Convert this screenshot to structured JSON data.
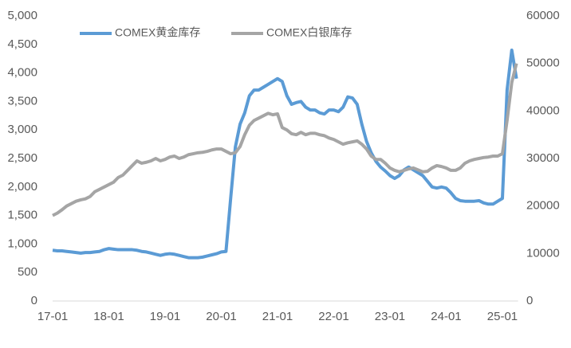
{
  "chart_data": {
    "type": "line",
    "x": [
      "17-01",
      "17-02",
      "17-03",
      "17-04",
      "17-05",
      "17-06",
      "17-07",
      "17-08",
      "17-09",
      "17-10",
      "17-11",
      "17-12",
      "18-01",
      "18-02",
      "18-03",
      "18-04",
      "18-05",
      "18-06",
      "18-07",
      "18-08",
      "18-09",
      "18-10",
      "18-11",
      "18-12",
      "19-01",
      "19-02",
      "19-03",
      "19-04",
      "19-05",
      "19-06",
      "19-07",
      "19-08",
      "19-09",
      "19-10",
      "19-11",
      "19-12",
      "20-01",
      "20-02",
      "20-03",
      "20-04",
      "20-05",
      "20-06",
      "20-07",
      "20-08",
      "20-09",
      "20-10",
      "20-11",
      "20-12",
      "21-01",
      "21-02",
      "21-03",
      "21-04",
      "21-05",
      "21-06",
      "21-07",
      "21-08",
      "21-09",
      "21-10",
      "21-11",
      "21-12",
      "22-01",
      "22-02",
      "22-03",
      "22-04",
      "22-05",
      "22-06",
      "22-07",
      "22-08",
      "22-09",
      "22-10",
      "22-11",
      "22-12",
      "23-01",
      "23-02",
      "23-03",
      "23-04",
      "23-05",
      "23-06",
      "23-07",
      "23-08",
      "23-09",
      "23-10",
      "23-11",
      "23-12",
      "24-01",
      "24-02",
      "24-03",
      "24-04",
      "24-05",
      "24-06",
      "24-07",
      "24-08",
      "24-09",
      "24-10",
      "24-11",
      "24-12",
      "25-01",
      "25-02",
      "25-03",
      "25-04"
    ],
    "xticks": [
      "17-01",
      "18-01",
      "19-01",
      "20-01",
      "21-01",
      "22-01",
      "23-01",
      "24-01",
      "25-01"
    ],
    "series": [
      {
        "name": "COMEX黄金库存",
        "color": "#5b9bd5",
        "values": [
          890,
          880,
          880,
          870,
          860,
          850,
          840,
          850,
          850,
          860,
          870,
          900,
          920,
          910,
          900,
          900,
          900,
          900,
          890,
          870,
          860,
          840,
          820,
          800,
          820,
          830,
          820,
          800,
          780,
          760,
          760,
          760,
          770,
          790,
          810,
          830,
          860,
          870,
          1800,
          2700,
          3100,
          3300,
          3600,
          3700,
          3700,
          3750,
          3800,
          3850,
          3900,
          3850,
          3600,
          3450,
          3480,
          3500,
          3400,
          3350,
          3350,
          3300,
          3280,
          3350,
          3350,
          3320,
          3400,
          3580,
          3560,
          3450,
          3100,
          2800,
          2600,
          2450,
          2350,
          2280,
          2200,
          2150,
          2200,
          2300,
          2350,
          2300,
          2250,
          2200,
          2100,
          2000,
          1980,
          2000,
          1980,
          1900,
          1800,
          1760,
          1750,
          1750,
          1750,
          1760,
          1720,
          1700,
          1700,
          1750,
          1800,
          3700,
          4400,
          3900
        ]
      },
      {
        "name": "COMEX白银库存",
        "color": "#a5a5a5",
        "axis": "y2",
        "values": [
          18000,
          18500,
          19200,
          20000,
          20500,
          21000,
          21300,
          21500,
          22000,
          23000,
          23500,
          24000,
          24500,
          25000,
          26000,
          26500,
          27500,
          28500,
          29500,
          29000,
          29200,
          29500,
          30000,
          29500,
          29800,
          30300,
          30500,
          30000,
          30300,
          30800,
          31000,
          31200,
          31300,
          31500,
          31800,
          32000,
          32000,
          31500,
          31000,
          31200,
          32500,
          35000,
          37000,
          38000,
          38500,
          39000,
          39500,
          39200,
          39400,
          36500,
          36000,
          35200,
          35000,
          35500,
          35000,
          35300,
          35300,
          35000,
          34800,
          34300,
          34000,
          33500,
          33000,
          33300,
          33500,
          33700,
          33000,
          32000,
          30500,
          29800,
          29800,
          29000,
          28000,
          27500,
          27200,
          27500,
          27800,
          28000,
          27600,
          27200,
          27300,
          28000,
          28500,
          28300,
          28000,
          27500,
          27500,
          28000,
          29000,
          29500,
          29800,
          30000,
          30200,
          30300,
          30500,
          30500,
          31000,
          38000,
          46000,
          50000
        ]
      }
    ],
    "ylim": [
      0,
      5000
    ],
    "yticks": [
      0,
      500,
      {
        "value": 1000,
        "label": "1,000"
      },
      {
        "value": 1500,
        "label": "1,500"
      },
      {
        "value": 2000,
        "label": "2,000"
      },
      {
        "value": 2500,
        "label": "2,500"
      },
      {
        "value": 3000,
        "label": "3,000"
      },
      {
        "value": 3500,
        "label": "3,500"
      },
      {
        "value": 4000,
        "label": "4,000"
      },
      {
        "value": 4500,
        "label": "4,500"
      },
      {
        "value": 5000,
        "label": "5,000"
      }
    ],
    "y2lim": [
      0,
      60000
    ],
    "y2ticks": [
      0,
      10000,
      20000,
      30000,
      40000,
      50000,
      60000
    ],
    "legend": "top-left"
  }
}
